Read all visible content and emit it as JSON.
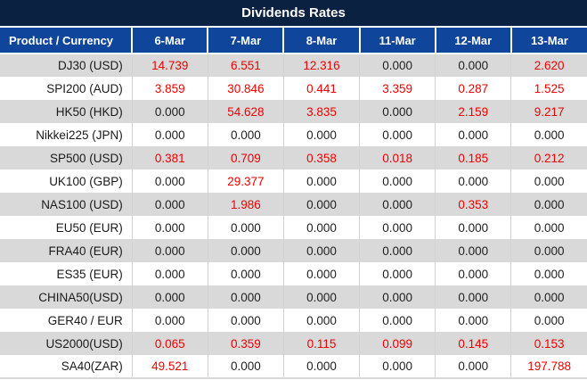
{
  "title": "Dividends Rates",
  "colors": {
    "title_bg": "#0b2142",
    "header_bg": "#0f459b",
    "row_alt_bg": "#d9d9d9",
    "row_bg": "#ffffff",
    "value_zero": "#1f1f1f",
    "value_nonzero": "#f10000",
    "header_text": "#ffffff"
  },
  "table": {
    "product_header": "Product / Currency",
    "date_columns": [
      "6-Mar",
      "7-Mar",
      "8-Mar",
      "11-Mar",
      "12-Mar",
      "13-Mar"
    ],
    "rows": [
      {
        "product": "DJ30 (USD)",
        "values": [
          "14.739",
          "6.551",
          "12.316",
          "0.000",
          "0.000",
          "2.620"
        ]
      },
      {
        "product": "SPI200 (AUD)",
        "values": [
          "3.859",
          "30.846",
          "0.441",
          "3.359",
          "0.287",
          "1.525"
        ]
      },
      {
        "product": "HK50 (HKD)",
        "values": [
          "0.000",
          "54.628",
          "3.835",
          "0.000",
          "2.159",
          "9.217"
        ]
      },
      {
        "product": "Nikkei225 (JPN)",
        "values": [
          "0.000",
          "0.000",
          "0.000",
          "0.000",
          "0.000",
          "0.000"
        ]
      },
      {
        "product": "SP500 (USD)",
        "values": [
          "0.381",
          "0.709",
          "0.358",
          "0.018",
          "0.185",
          "0.212"
        ]
      },
      {
        "product": "UK100 (GBP)",
        "values": [
          "0.000",
          "29.377",
          "0.000",
          "0.000",
          "0.000",
          "0.000"
        ]
      },
      {
        "product": "NAS100 (USD)",
        "values": [
          "0.000",
          "1.986",
          "0.000",
          "0.000",
          "0.353",
          "0.000"
        ]
      },
      {
        "product": "EU50 (EUR)",
        "values": [
          "0.000",
          "0.000",
          "0.000",
          "0.000",
          "0.000",
          "0.000"
        ]
      },
      {
        "product": "FRA40 (EUR)",
        "values": [
          "0.000",
          "0.000",
          "0.000",
          "0.000",
          "0.000",
          "0.000"
        ]
      },
      {
        "product": "ES35 (EUR)",
        "values": [
          "0.000",
          "0.000",
          "0.000",
          "0.000",
          "0.000",
          "0.000"
        ]
      },
      {
        "product": "CHINA50(USD)",
        "values": [
          "0.000",
          "0.000",
          "0.000",
          "0.000",
          "0.000",
          "0.000"
        ]
      },
      {
        "product": "GER40 / EUR",
        "values": [
          "0.000",
          "0.000",
          "0.000",
          "0.000",
          "0.000",
          "0.000"
        ]
      },
      {
        "product": "US2000(USD)",
        "values": [
          "0.065",
          "0.359",
          "0.115",
          "0.099",
          "0.145",
          "0.153"
        ]
      },
      {
        "product": "SA40(ZAR)",
        "values": [
          "49.521",
          "0.000",
          "0.000",
          "0.000",
          "0.000",
          "197.788"
        ]
      }
    ]
  }
}
